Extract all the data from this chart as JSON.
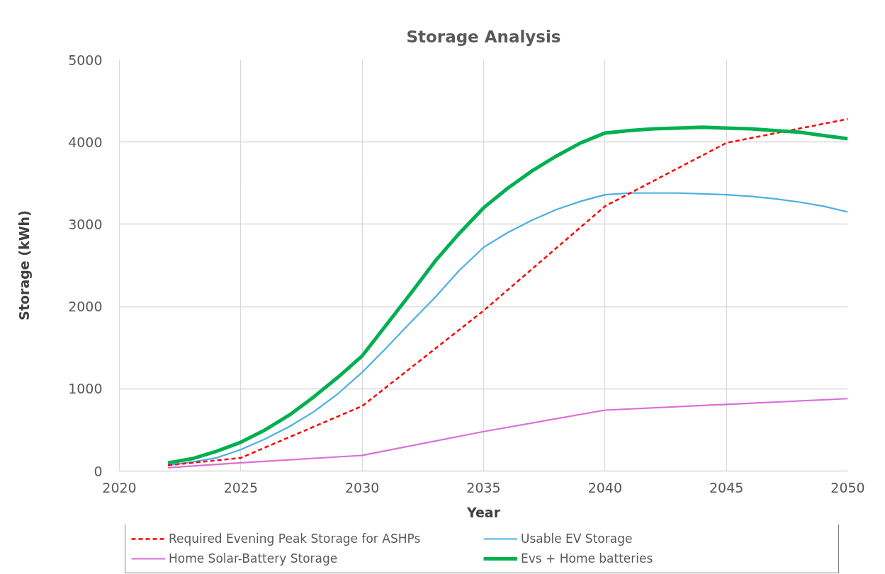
{
  "chart_data": {
    "type": "line",
    "title": "Storage Analysis",
    "xlabel": "Year",
    "ylabel": "Storage (kWh)",
    "xlim": [
      2020,
      2050
    ],
    "ylim": [
      0,
      5000
    ],
    "xticks": [
      2020,
      2025,
      2030,
      2035,
      2040,
      2045,
      2050
    ],
    "yticks": [
      0,
      1000,
      2000,
      3000,
      4000,
      5000
    ],
    "grid": true,
    "legend": "bottom",
    "line_style": "solid",
    "series": [
      {
        "name": "Required Evening Peak Storage for ASHPs",
        "color": "#ff0000",
        "line_style": "dashed",
        "x": [
          2022,
          2025,
          2030,
          2035,
          2040,
          2045,
          2050
        ],
        "values": [
          70,
          160,
          790,
          1950,
          3220,
          3990,
          4280
        ]
      },
      {
        "name": "Usable EV Storage",
        "color": "#4bb0e3",
        "x": [
          2022,
          2023,
          2024,
          2025,
          2026,
          2027,
          2028,
          2029,
          2030,
          2031,
          2032,
          2033,
          2034,
          2035,
          2036,
          2037,
          2038,
          2039,
          2040,
          2041,
          2042,
          2043,
          2044,
          2045,
          2046,
          2047,
          2048,
          2049,
          2050
        ],
        "values": [
          70,
          110,
          160,
          260,
          390,
          540,
          720,
          940,
          1200,
          1500,
          1810,
          2110,
          2440,
          2720,
          2900,
          3050,
          3180,
          3280,
          3360,
          3380,
          3380,
          3380,
          3370,
          3360,
          3340,
          3310,
          3270,
          3220,
          3150
        ]
      },
      {
        "name": "Home Solar-Battery Storage",
        "color": "#da6fd6",
        "x": [
          2022,
          2025,
          2030,
          2035,
          2040,
          2045,
          2050
        ],
        "values": [
          40,
          100,
          190,
          480,
          740,
          810,
          880
        ]
      },
      {
        "name": "Evs + Home batteries",
        "color": "#00b050",
        "x": [
          2022,
          2023,
          2024,
          2025,
          2026,
          2027,
          2028,
          2029,
          2030,
          2031,
          2032,
          2033,
          2034,
          2035,
          2036,
          2037,
          2038,
          2039,
          2040,
          2041,
          2042,
          2043,
          2044,
          2045,
          2046,
          2047,
          2048,
          2049,
          2050
        ],
        "values": [
          100,
          150,
          240,
          350,
          500,
          680,
          900,
          1140,
          1400,
          1780,
          2160,
          2550,
          2890,
          3200,
          3440,
          3650,
          3830,
          3990,
          4110,
          4140,
          4160,
          4170,
          4180,
          4170,
          4160,
          4140,
          4120,
          4080,
          4040
        ]
      }
    ]
  }
}
